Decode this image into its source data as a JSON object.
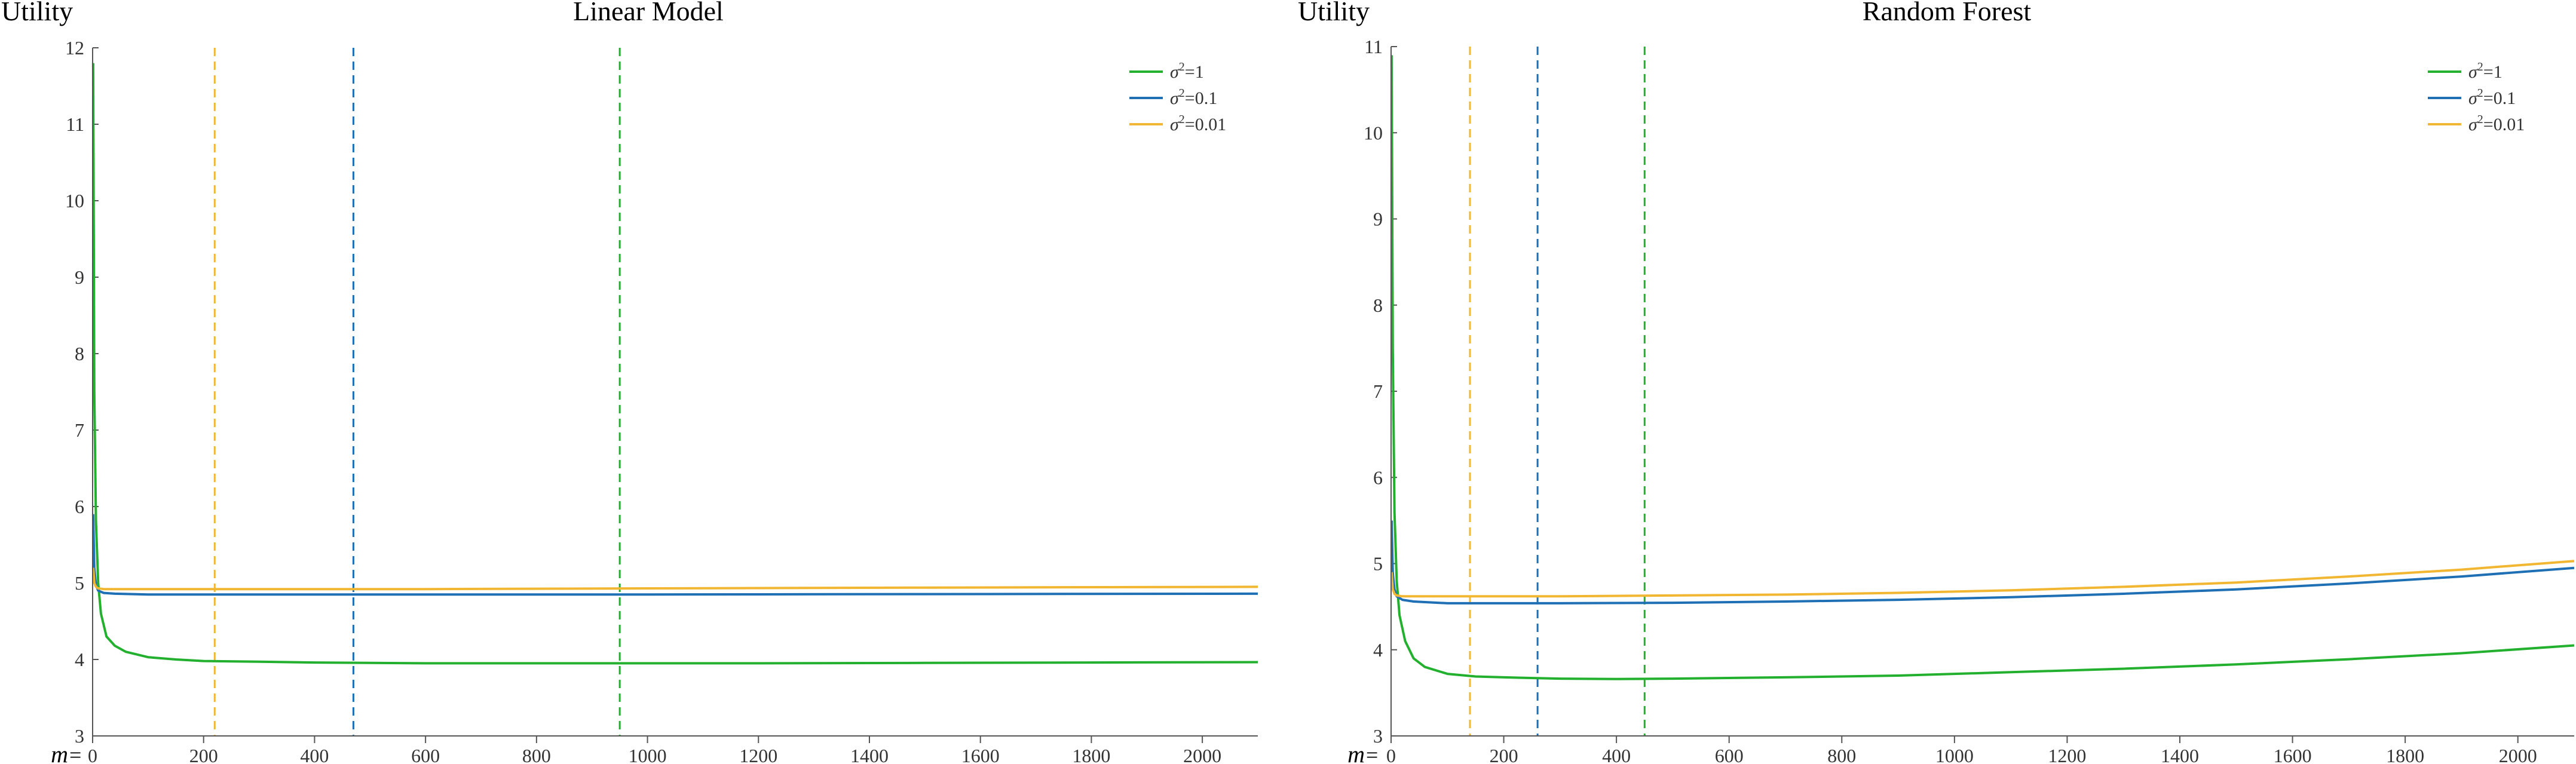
{
  "chart_data": [
    {
      "type": "line",
      "title": "Linear Model",
      "ylabel": "Utility",
      "xlabel": "m",
      "xlabel_suffix": "=",
      "xlim": [
        0,
        2100
      ],
      "ylim": [
        3,
        12
      ],
      "xticks": [
        "0",
        "200",
        "400",
        "600",
        "800",
        "1000",
        "1200",
        "1400",
        "1600",
        "1800",
        "2000"
      ],
      "yticks": [
        "3",
        "4",
        "5",
        "6",
        "7",
        "8",
        "9",
        "10",
        "11",
        "12"
      ],
      "grid": false,
      "legend_position": "top-right",
      "series": [
        {
          "name": "σ²=1",
          "legend_base": "σ",
          "legend_sup": "2",
          "legend_rest": "=1",
          "color": "#22b02e",
          "x": [
            1,
            3,
            6,
            10,
            15,
            25,
            40,
            60,
            100,
            150,
            200,
            300,
            400,
            500,
            600,
            800,
            1000,
            1200,
            1500,
            1800,
            2100
          ],
          "y": [
            11.8,
            7.5,
            5.8,
            5.0,
            4.6,
            4.3,
            4.18,
            4.1,
            4.03,
            4.0,
            3.98,
            3.97,
            3.96,
            3.955,
            3.95,
            3.95,
            3.95,
            3.95,
            3.955,
            3.96,
            3.965
          ]
        },
        {
          "name": "σ²=0.1",
          "legend_base": "σ",
          "legend_sup": "2",
          "legend_rest": "=0.1",
          "color": "#1f6fb5",
          "x": [
            1,
            3,
            6,
            10,
            20,
            40,
            100,
            300,
            600,
            1000,
            1500,
            2100
          ],
          "y": [
            5.9,
            5.2,
            4.97,
            4.9,
            4.87,
            4.86,
            4.85,
            4.85,
            4.85,
            4.85,
            4.855,
            4.86
          ]
        },
        {
          "name": "σ²=0.01",
          "legend_base": "σ",
          "legend_sup": "2",
          "legend_rest": "=0.01",
          "color": "#f1b733",
          "x": [
            1,
            3,
            6,
            10,
            20,
            40,
            100,
            300,
            600,
            1000,
            1500,
            2100
          ],
          "y": [
            5.2,
            5.0,
            4.95,
            4.93,
            4.92,
            4.92,
            4.92,
            4.92,
            4.92,
            4.93,
            4.94,
            4.95
          ]
        }
      ],
      "vlines": [
        {
          "x": 220,
          "color": "#f1b733"
        },
        {
          "x": 470,
          "color": "#1f6fb5"
        },
        {
          "x": 950,
          "color": "#22b02e"
        }
      ]
    },
    {
      "type": "line",
      "title": "Random Forest",
      "ylabel": "Utility",
      "xlabel": "m",
      "xlabel_suffix": "=",
      "xlim": [
        0,
        2100
      ],
      "ylim": [
        3,
        11
      ],
      "xticks": [
        "0",
        "200",
        "400",
        "600",
        "800",
        "1000",
        "1200",
        "1400",
        "1600",
        "1800",
        "2000"
      ],
      "yticks": [
        "3",
        "4",
        "5",
        "6",
        "7",
        "8",
        "9",
        "10",
        "11"
      ],
      "grid": false,
      "legend_position": "top-right",
      "series": [
        {
          "name": "σ²=1",
          "legend_base": "σ",
          "legend_sup": "2",
          "legend_rest": "=1",
          "color": "#22b02e",
          "x": [
            1,
            3,
            6,
            10,
            15,
            25,
            40,
            60,
            100,
            150,
            200,
            300,
            400,
            500,
            700,
            900,
            1100,
            1300,
            1500,
            1700,
            1900,
            2100
          ],
          "y": [
            10.9,
            7.5,
            5.6,
            4.8,
            4.4,
            4.1,
            3.9,
            3.8,
            3.72,
            3.69,
            3.68,
            3.665,
            3.66,
            3.665,
            3.68,
            3.7,
            3.74,
            3.78,
            3.83,
            3.89,
            3.96,
            4.05
          ]
        },
        {
          "name": "σ²=0.1",
          "legend_base": "σ",
          "legend_sup": "2",
          "legend_rest": "=0.1",
          "color": "#1f6fb5",
          "x": [
            1,
            3,
            6,
            10,
            20,
            40,
            100,
            200,
            300,
            500,
            700,
            900,
            1100,
            1300,
            1500,
            1700,
            1900,
            2100
          ],
          "y": [
            5.5,
            4.9,
            4.7,
            4.62,
            4.58,
            4.56,
            4.54,
            4.54,
            4.54,
            4.545,
            4.56,
            4.58,
            4.61,
            4.65,
            4.7,
            4.77,
            4.85,
            4.95
          ]
        },
        {
          "name": "σ²=0.01",
          "legend_base": "σ",
          "legend_sup": "2",
          "legend_rest": "=0.01",
          "color": "#f1b733",
          "x": [
            1,
            3,
            6,
            10,
            20,
            40,
            100,
            200,
            300,
            500,
            700,
            900,
            1100,
            1300,
            1500,
            1700,
            1900,
            2100
          ],
          "y": [
            4.9,
            4.7,
            4.65,
            4.63,
            4.62,
            4.62,
            4.62,
            4.62,
            4.62,
            4.63,
            4.64,
            4.66,
            4.69,
            4.73,
            4.78,
            4.85,
            4.93,
            5.03
          ]
        }
      ],
      "vlines": [
        {
          "x": 140,
          "color": "#f1b733"
        },
        {
          "x": 260,
          "color": "#1f6fb5"
        },
        {
          "x": 450,
          "color": "#22b02e"
        }
      ]
    }
  ]
}
